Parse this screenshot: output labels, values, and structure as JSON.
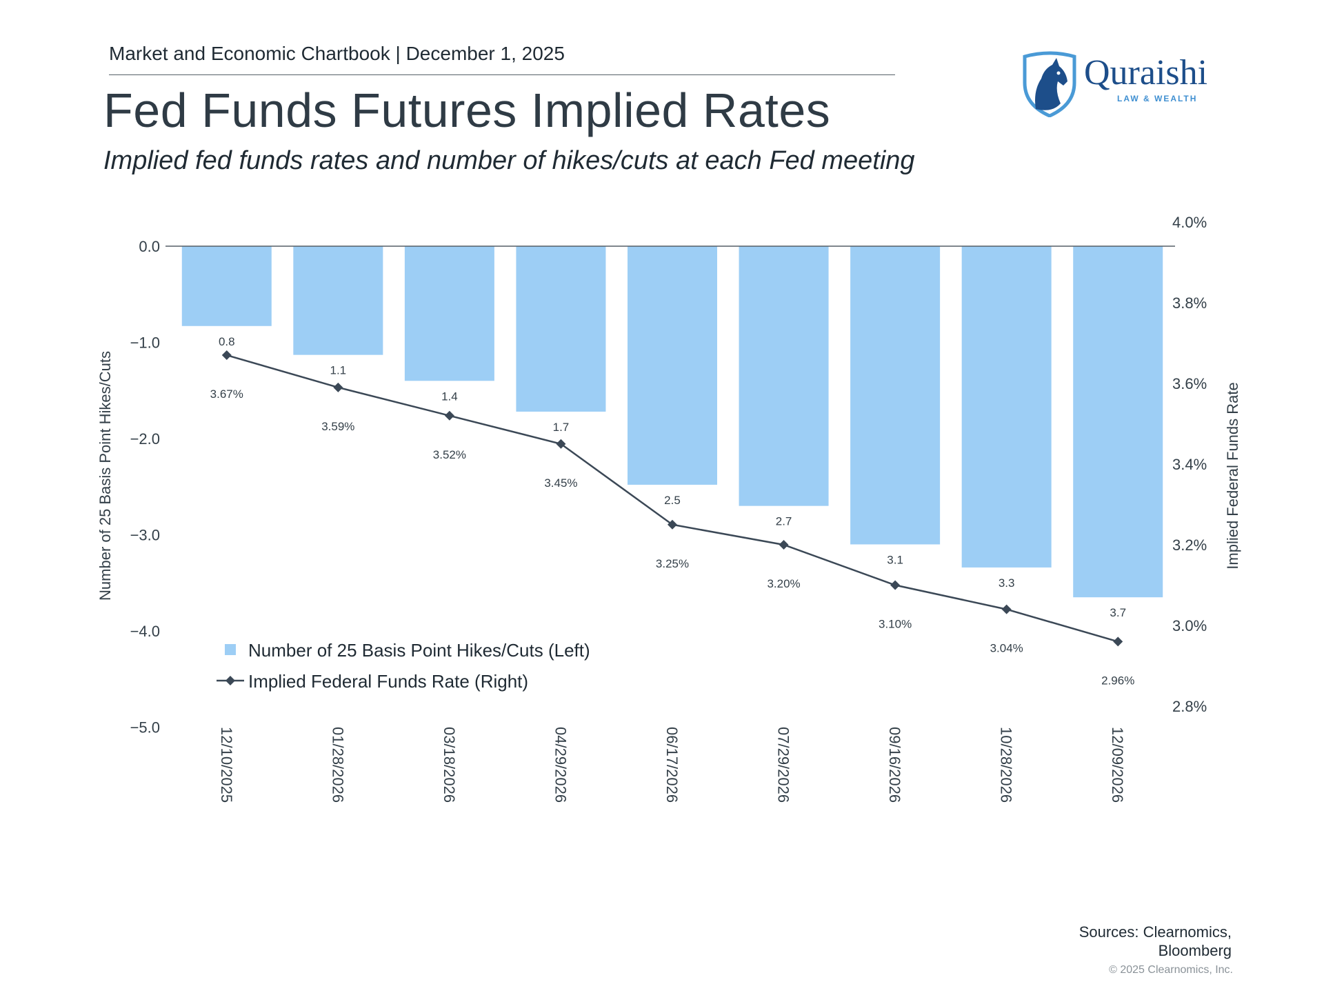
{
  "header": {
    "line": "Market and Economic Chartbook | December 1, 2025",
    "title": "Fed Funds Futures Implied Rates",
    "subtitle": "Implied fed funds rates and number of hikes/cuts at each Fed meeting"
  },
  "logo": {
    "name": "Quraishi",
    "tagline": "LAW & WEALTH",
    "icon": "horse-head-shield-icon"
  },
  "colors": {
    "bar": "#9dcef5",
    "line": "#3b4856",
    "text": "#333f48",
    "brand": "#1d4e8a"
  },
  "chart_data": {
    "type": "bar",
    "categories": [
      "12/10/2025",
      "01/28/2026",
      "03/18/2026",
      "04/29/2026",
      "06/17/2026",
      "07/29/2026",
      "09/16/2026",
      "10/28/2026",
      "12/09/2026"
    ],
    "series": [
      {
        "name": "Number of 25 Basis Point Hikes/Cuts (Left)",
        "type": "bar",
        "axis": "left",
        "values": [
          -0.83,
          -1.13,
          -1.4,
          -1.72,
          -2.48,
          -2.7,
          -3.1,
          -3.34,
          -3.65
        ],
        "labels": [
          "0.8",
          "1.1",
          "1.4",
          "1.7",
          "2.5",
          "2.7",
          "3.1",
          "3.3",
          "3.7"
        ]
      },
      {
        "name": "Implied Federal Funds Rate (Right)",
        "type": "line",
        "axis": "right",
        "values": [
          3.67,
          3.59,
          3.52,
          3.45,
          3.25,
          3.2,
          3.1,
          3.04,
          2.96
        ],
        "labels": [
          "3.67%",
          "3.59%",
          "3.52%",
          "3.45%",
          "3.25%",
          "3.20%",
          "3.10%",
          "3.04%",
          "2.96%"
        ]
      }
    ],
    "ylabel": "Number of 25 Basis Point Hikes/Cuts",
    "ylim": [
      -5.0,
      0.25
    ],
    "yticks": [
      "0.0",
      "−1.0",
      "−2.0",
      "−3.0",
      "−4.0",
      "−5.0"
    ],
    "y2label": "Implied Federal Funds Rate",
    "y2lim": [
      2.8,
      4.0
    ],
    "y2ticks": [
      "4.0%",
      "3.8%",
      "3.6%",
      "3.4%",
      "3.2%",
      "3.0%",
      "2.8%"
    ],
    "legend": "bottom-left inside",
    "grid": false
  },
  "footer": {
    "sources_line1": "Sources: Clearnomics,",
    "sources_line2": "Bloomberg",
    "copyright": "© 2025 Clearnomics, Inc."
  }
}
